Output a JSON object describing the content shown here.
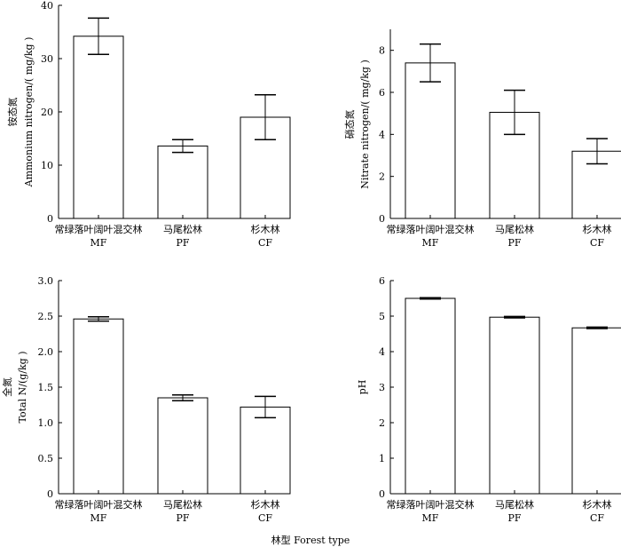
{
  "x_axis_title": "林型 Forest type",
  "chart_data": [
    {
      "type": "bar",
      "categories": [
        {
          "zh": "常绿落叶阔叶混交林",
          "en": "MF"
        },
        {
          "zh": "马尾松林",
          "en": "PF"
        },
        {
          "zh": "杉木林",
          "en": "CF"
        }
      ],
      "values": [
        34.2,
        13.6,
        19.0
      ],
      "errors": [
        3.4,
        1.2,
        4.2
      ],
      "ylabel_zh": "铵态氮",
      "ylabel_en": "Ammonium nitrogen/( mg/kg )",
      "ylim": [
        0,
        40
      ],
      "yticks": [
        "0",
        "10",
        "20",
        "30",
        "40"
      ]
    },
    {
      "type": "bar",
      "categories": [
        {
          "zh": "常绿落叶阔叶混交林",
          "en": "MF"
        },
        {
          "zh": "马尾松林",
          "en": "PF"
        },
        {
          "zh": "杉木林",
          "en": "CF"
        }
      ],
      "values": [
        7.4,
        5.05,
        3.2
      ],
      "errors": [
        0.9,
        1.05,
        0.6
      ],
      "ylabel_zh": "硝态氮",
      "ylabel_en": "Nitrate nitrogen/( mg/kg )",
      "ylim": [
        0,
        9
      ],
      "yticks": [
        "0",
        "2",
        "4",
        "6",
        "8"
      ]
    },
    {
      "type": "bar",
      "categories": [
        {
          "zh": "常绿落叶阔叶混交林",
          "en": "MF"
        },
        {
          "zh": "马尾松林",
          "en": "PF"
        },
        {
          "zh": "杉木林",
          "en": "CF"
        }
      ],
      "values": [
        2.46,
        1.35,
        1.22
      ],
      "errors": [
        0.03,
        0.04,
        0.15
      ],
      "ylabel_zh": "全氮",
      "ylabel_en": "Total N/(g/kg )",
      "ylim": [
        0,
        3
      ],
      "yticks": [
        "0",
        "0.5",
        "1.0",
        "1.5",
        "2.0",
        "2.5",
        "3.0"
      ]
    },
    {
      "type": "bar",
      "categories": [
        {
          "zh": "常绿落叶阔叶混交林",
          "en": "MF"
        },
        {
          "zh": "马尾松林",
          "en": "PF"
        },
        {
          "zh": "杉木林",
          "en": "CF"
        }
      ],
      "values": [
        5.5,
        4.97,
        4.67
      ],
      "errors": [
        0.02,
        0.02,
        0.02
      ],
      "ylabel_zh": "",
      "ylabel_en": "pH",
      "ylim": [
        0,
        6
      ],
      "yticks": [
        "0",
        "1",
        "2",
        "3",
        "4",
        "5",
        "6"
      ]
    }
  ]
}
